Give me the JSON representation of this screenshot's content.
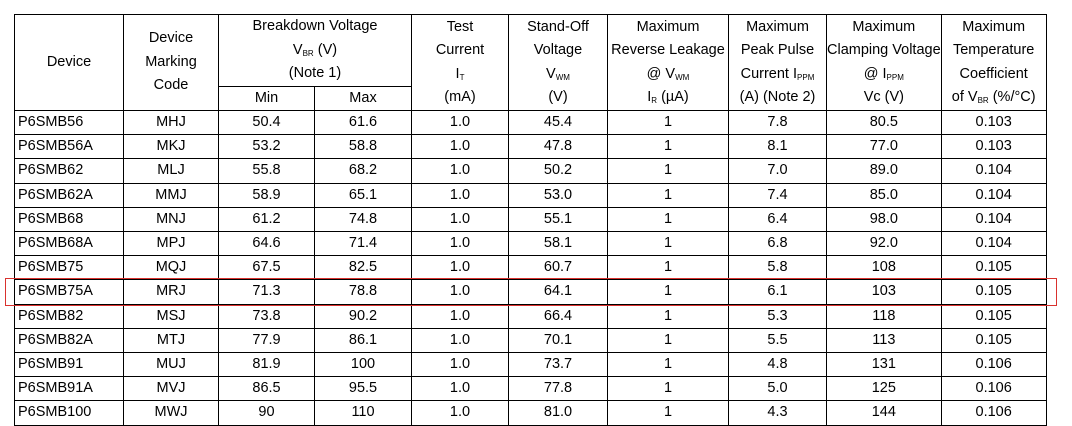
{
  "headers": {
    "device": "Device",
    "marking_line1": "Device",
    "marking_line2": "Marking",
    "marking_line3": "Code",
    "vbr_line1": "Breakdown Voltage",
    "vbr_line2_main": "V",
    "vbr_line2_sub": "BR",
    "vbr_line2_tail": " (V)",
    "vbr_line3": "(Note 1)",
    "vbr_min": "Min",
    "vbr_max": "Max",
    "it_line1": "Test",
    "it_line2": "Current",
    "it_line3_main": "I",
    "it_line3_sub": "T",
    "it_line4": "(mA)",
    "vwm_line1": "Stand-Off",
    "vwm_line2": "Voltage",
    "vwm_line3_main": "V",
    "vwm_line3_sub": "WM",
    "vwm_line4": "(V)",
    "ir_line1": "Maximum",
    "ir_line2": "Reverse Leakage",
    "ir_line3_main": "@ V",
    "ir_line3_sub": "WM",
    "ir_line4_main": "I",
    "ir_line4_sub": "R",
    "ir_line4_tail": " (µA)",
    "ippm_line1": "Maximum",
    "ippm_line2": "Peak Pulse",
    "ippm_line3_main": "Current I",
    "ippm_line3_sub": "PPM",
    "ippm_line4": "(A) (Note 2)",
    "vc_line1": "Maximum",
    "vc_line2": "Clamping Voltage",
    "vc_line3_main": "@ I",
    "vc_line3_sub": "PPM",
    "vc_line4": "Vc (V)",
    "tc_line1": "Maximum",
    "tc_line2": "Temperature",
    "tc_line3": "Coefficient",
    "tc_line4_main": "of V",
    "tc_line4_sub": "BR",
    "tc_line4_tail": " (%/°C)"
  },
  "rows": [
    {
      "device": "P6SMB56",
      "code": "MHJ",
      "min": "50.4",
      "max": "61.6",
      "it": "1.0",
      "vwm": "45.4",
      "ir": "1",
      "ippm": "7.8",
      "vc": "80.5",
      "tc": "0.103"
    },
    {
      "device": "P6SMB56A",
      "code": "MKJ",
      "min": "53.2",
      "max": "58.8",
      "it": "1.0",
      "vwm": "47.8",
      "ir": "1",
      "ippm": "8.1",
      "vc": "77.0",
      "tc": "0.103"
    },
    {
      "device": "P6SMB62",
      "code": "MLJ",
      "min": "55.8",
      "max": "68.2",
      "it": "1.0",
      "vwm": "50.2",
      "ir": "1",
      "ippm": "7.0",
      "vc": "89.0",
      "tc": "0.104"
    },
    {
      "device": "P6SMB62A",
      "code": "MMJ",
      "min": "58.9",
      "max": "65.1",
      "it": "1.0",
      "vwm": "53.0",
      "ir": "1",
      "ippm": "7.4",
      "vc": "85.0",
      "tc": "0.104"
    },
    {
      "device": "P6SMB68",
      "code": "MNJ",
      "min": "61.2",
      "max": "74.8",
      "it": "1.0",
      "vwm": "55.1",
      "ir": "1",
      "ippm": "6.4",
      "vc": "98.0",
      "tc": "0.104"
    },
    {
      "device": "P6SMB68A",
      "code": "MPJ",
      "min": "64.6",
      "max": "71.4",
      "it": "1.0",
      "vwm": "58.1",
      "ir": "1",
      "ippm": "6.8",
      "vc": "92.0",
      "tc": "0.104"
    },
    {
      "device": "P6SMB75",
      "code": "MQJ",
      "min": "67.5",
      "max": "82.5",
      "it": "1.0",
      "vwm": "60.7",
      "ir": "1",
      "ippm": "5.8",
      "vc": "108",
      "tc": "0.105"
    },
    {
      "device": "P6SMB75A",
      "code": "MRJ",
      "min": "71.3",
      "max": "78.8",
      "it": "1.0",
      "vwm": "64.1",
      "ir": "1",
      "ippm": "6.1",
      "vc": "103",
      "tc": "0.105",
      "highlighted": true
    },
    {
      "device": "P6SMB82",
      "code": "MSJ",
      "min": "73.8",
      "max": "90.2",
      "it": "1.0",
      "vwm": "66.4",
      "ir": "1",
      "ippm": "5.3",
      "vc": "118",
      "tc": "0.105"
    },
    {
      "device": "P6SMB82A",
      "code": "MTJ",
      "min": "77.9",
      "max": "86.1",
      "it": "1.0",
      "vwm": "70.1",
      "ir": "1",
      "ippm": "5.5",
      "vc": "113",
      "tc": "0.105"
    },
    {
      "device": "P6SMB91",
      "code": "MUJ",
      "min": "81.9",
      "max": "100",
      "it": "1.0",
      "vwm": "73.7",
      "ir": "1",
      "ippm": "4.8",
      "vc": "131",
      "tc": "0.106"
    },
    {
      "device": "P6SMB91A",
      "code": "MVJ",
      "min": "86.5",
      "max": "95.5",
      "it": "1.0",
      "vwm": "77.8",
      "ir": "1",
      "ippm": "5.0",
      "vc": "125",
      "tc": "0.106"
    },
    {
      "device": "P6SMB100",
      "code": "MWJ",
      "min": "90",
      "max": "110",
      "it": "1.0",
      "vwm": "81.0",
      "ir": "1",
      "ippm": "4.3",
      "vc": "144",
      "tc": "0.106"
    }
  ],
  "colors": {
    "highlight_border": "#d9322e",
    "grid": "#000000"
  }
}
